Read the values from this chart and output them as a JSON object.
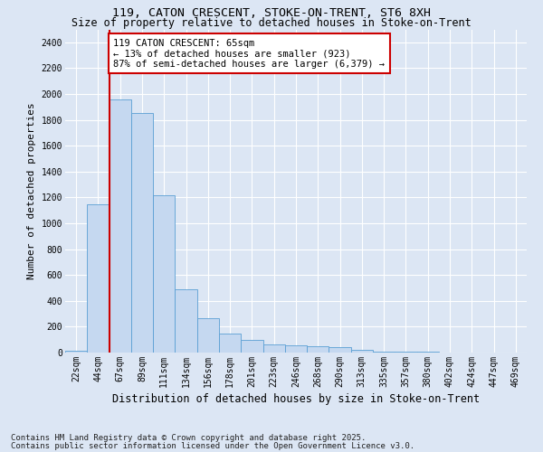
{
  "title1": "119, CATON CRESCENT, STOKE-ON-TRENT, ST6 8XH",
  "title2": "Size of property relative to detached houses in Stoke-on-Trent",
  "xlabel": "Distribution of detached houses by size in Stoke-on-Trent",
  "ylabel": "Number of detached properties",
  "footnote1": "Contains HM Land Registry data © Crown copyright and database right 2025.",
  "footnote2": "Contains public sector information licensed under the Open Government Licence v3.0.",
  "bar_labels": [
    "22sqm",
    "44sqm",
    "67sqm",
    "89sqm",
    "111sqm",
    "134sqm",
    "156sqm",
    "178sqm",
    "201sqm",
    "223sqm",
    "246sqm",
    "268sqm",
    "290sqm",
    "313sqm",
    "335sqm",
    "357sqm",
    "380sqm",
    "402sqm",
    "424sqm",
    "447sqm",
    "469sqm"
  ],
  "bar_values": [
    15,
    1150,
    1960,
    1850,
    1220,
    490,
    265,
    150,
    95,
    65,
    55,
    50,
    45,
    22,
    10,
    5,
    4,
    2,
    2,
    1,
    1
  ],
  "bar_color": "#c5d8f0",
  "bar_edge_color": "#5a9fd4",
  "property_size_label": "119 CATON CRESCENT: 65sqm",
  "pct_smaller": 13,
  "n_smaller": 923,
  "pct_larger_semi": 87,
  "n_larger_semi": 6379,
  "red_line_color": "#cc0000",
  "annotation_box_color": "#cc0000",
  "ylim": [
    0,
    2500
  ],
  "yticks": [
    0,
    200,
    400,
    600,
    800,
    1000,
    1200,
    1400,
    1600,
    1800,
    2000,
    2200,
    2400
  ],
  "bg_color": "#dce6f4",
  "plot_bg_color": "#dce6f4",
  "grid_color": "#ffffff",
  "title_fontsize": 9.5,
  "subtitle_fontsize": 8.5,
  "axis_label_fontsize": 8,
  "tick_fontsize": 7,
  "annotation_fontsize": 7.5,
  "footnote_fontsize": 6.5
}
